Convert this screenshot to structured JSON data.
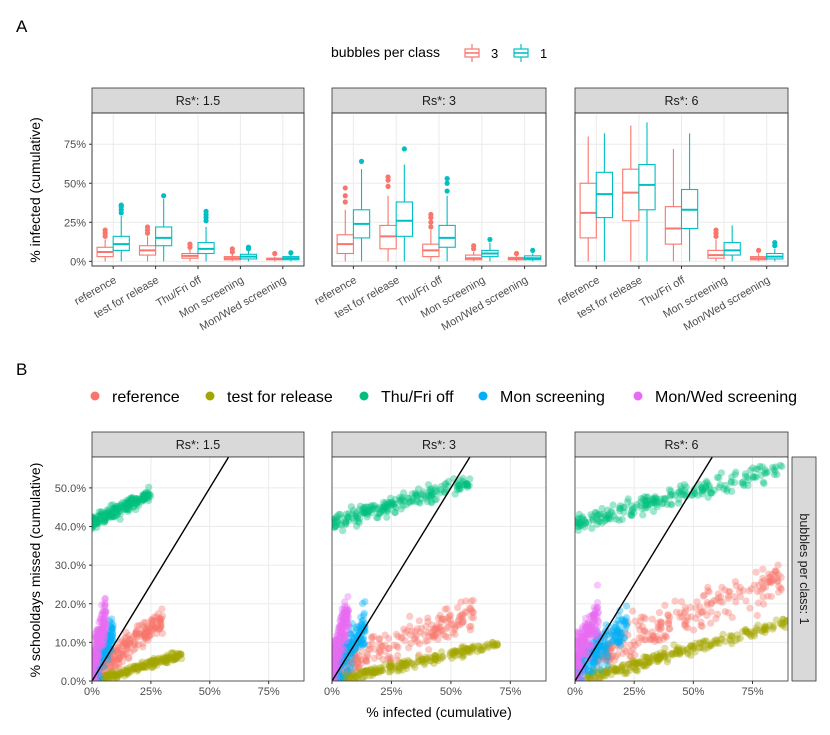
{
  "figure": {
    "panel_a_label": "A",
    "panel_b_label": "B"
  },
  "colors": {
    "bubbles3": "#F8766D",
    "bubbles1": "#00BFC4",
    "reference": "#F8766D",
    "test for release": "#A3A500",
    "Thu/Fri off": "#00BF7D",
    "Mon screening": "#00B0F6",
    "Mon/Wed screening": "#E76BF3"
  },
  "chart_data": [
    {
      "type": "boxplot",
      "id": "A",
      "ylabel": "% infected (cumulative)",
      "ylim": [
        -0.03,
        0.95
      ],
      "y_ticks": [
        0,
        0.25,
        0.5,
        0.75
      ],
      "y_tick_labels": [
        "0%",
        "25%",
        "50%",
        "75%"
      ],
      "categories": [
        "reference",
        "test for release",
        "Thu/Fri off",
        "Mon screening",
        "Mon/Wed screening"
      ],
      "legend": {
        "title": "bubbles per class",
        "entries": [
          {
            "label": "3",
            "color": "#F8766D"
          },
          {
            "label": "1",
            "color": "#00BFC4"
          }
        ]
      },
      "panels": [
        {
          "strip": "Rs*: 1.5",
          "series": [
            {
              "name": "3",
              "boxes": [
                {
                  "q1": 0.03,
                  "median": 0.06,
                  "q3": 0.09,
                  "lo": 0.0,
                  "hi": 0.14,
                  "out": [
                    0.16,
                    0.18,
                    0.2
                  ]
                },
                {
                  "q1": 0.04,
                  "median": 0.07,
                  "q3": 0.1,
                  "lo": 0.0,
                  "hi": 0.16,
                  "out": [
                    0.18,
                    0.2,
                    0.22
                  ]
                },
                {
                  "q1": 0.02,
                  "median": 0.035,
                  "q3": 0.05,
                  "lo": 0.0,
                  "hi": 0.08,
                  "out": [
                    0.09,
                    0.11
                  ]
                },
                {
                  "q1": 0.01,
                  "median": 0.02,
                  "q3": 0.03,
                  "lo": 0.0,
                  "hi": 0.05,
                  "out": [
                    0.06,
                    0.08
                  ]
                },
                {
                  "q1": 0.01,
                  "median": 0.015,
                  "q3": 0.02,
                  "lo": 0.0,
                  "hi": 0.03,
                  "out": [
                    0.05
                  ]
                }
              ]
            },
            {
              "name": "1",
              "boxes": [
                {
                  "q1": 0.07,
                  "median": 0.11,
                  "q3": 0.16,
                  "lo": 0.0,
                  "hi": 0.29,
                  "out": [
                    0.31,
                    0.33,
                    0.35,
                    0.36
                  ]
                },
                {
                  "q1": 0.1,
                  "median": 0.15,
                  "q3": 0.22,
                  "lo": 0.0,
                  "hi": 0.4,
                  "out": [
                    0.42
                  ]
                },
                {
                  "q1": 0.05,
                  "median": 0.08,
                  "q3": 0.12,
                  "lo": 0.0,
                  "hi": 0.22,
                  "out": [
                    0.26,
                    0.28,
                    0.3,
                    0.32
                  ]
                },
                {
                  "q1": 0.015,
                  "median": 0.03,
                  "q3": 0.045,
                  "lo": 0.0,
                  "hi": 0.07,
                  "out": [
                    0.08,
                    0.09
                  ]
                },
                {
                  "q1": 0.01,
                  "median": 0.02,
                  "q3": 0.03,
                  "lo": 0.0,
                  "hi": 0.045,
                  "out": [
                    0.055
                  ]
                }
              ]
            }
          ]
        },
        {
          "strip": "Rs*: 3",
          "series": [
            {
              "name": "3",
              "boxes": [
                {
                  "q1": 0.05,
                  "median": 0.11,
                  "q3": 0.17,
                  "lo": 0.0,
                  "hi": 0.33,
                  "out": [
                    0.38,
                    0.42,
                    0.47
                  ]
                },
                {
                  "q1": 0.08,
                  "median": 0.16,
                  "q3": 0.23,
                  "lo": 0.0,
                  "hi": 0.42,
                  "out": [
                    0.48,
                    0.52,
                    0.54
                  ]
                },
                {
                  "q1": 0.03,
                  "median": 0.07,
                  "q3": 0.11,
                  "lo": 0.0,
                  "hi": 0.2,
                  "out": [
                    0.22,
                    0.25,
                    0.28,
                    0.3
                  ]
                },
                {
                  "q1": 0.01,
                  "median": 0.02,
                  "q3": 0.04,
                  "lo": 0.0,
                  "hi": 0.06,
                  "out": [
                    0.08,
                    0.1
                  ]
                },
                {
                  "q1": 0.01,
                  "median": 0.015,
                  "q3": 0.025,
                  "lo": 0.0,
                  "hi": 0.04,
                  "out": [
                    0.05
                  ]
                }
              ]
            },
            {
              "name": "1",
              "boxes": [
                {
                  "q1": 0.15,
                  "median": 0.24,
                  "q3": 0.33,
                  "lo": 0.0,
                  "hi": 0.59,
                  "out": [
                    0.64
                  ]
                },
                {
                  "q1": 0.16,
                  "median": 0.26,
                  "q3": 0.38,
                  "lo": 0.0,
                  "hi": 0.62,
                  "out": [
                    0.72
                  ]
                },
                {
                  "q1": 0.09,
                  "median": 0.15,
                  "q3": 0.23,
                  "lo": 0.0,
                  "hi": 0.42,
                  "out": [
                    0.45,
                    0.5,
                    0.53
                  ]
                },
                {
                  "q1": 0.03,
                  "median": 0.05,
                  "q3": 0.07,
                  "lo": 0.0,
                  "hi": 0.12,
                  "out": [
                    0.14
                  ]
                },
                {
                  "q1": 0.01,
                  "median": 0.02,
                  "q3": 0.035,
                  "lo": 0.0,
                  "hi": 0.05,
                  "out": [
                    0.07
                  ]
                }
              ]
            }
          ]
        },
        {
          "strip": "Rs*: 6",
          "series": [
            {
              "name": "3",
              "boxes": [
                {
                  "q1": 0.15,
                  "median": 0.31,
                  "q3": 0.5,
                  "lo": 0.0,
                  "hi": 0.8,
                  "out": []
                },
                {
                  "q1": 0.26,
                  "median": 0.44,
                  "q3": 0.59,
                  "lo": 0.0,
                  "hi": 0.87,
                  "out": []
                },
                {
                  "q1": 0.11,
                  "median": 0.21,
                  "q3": 0.35,
                  "lo": 0.0,
                  "hi": 0.72,
                  "out": []
                },
                {
                  "q1": 0.02,
                  "median": 0.04,
                  "q3": 0.07,
                  "lo": 0.0,
                  "hi": 0.14,
                  "out": [
                    0.16,
                    0.18,
                    0.2
                  ]
                },
                {
                  "q1": 0.01,
                  "median": 0.02,
                  "q3": 0.03,
                  "lo": 0.0,
                  "hi": 0.05,
                  "out": [
                    0.07
                  ]
                }
              ]
            },
            {
              "name": "1",
              "boxes": [
                {
                  "q1": 0.28,
                  "median": 0.43,
                  "q3": 0.57,
                  "lo": 0.0,
                  "hi": 0.82,
                  "out": []
                },
                {
                  "q1": 0.33,
                  "median": 0.49,
                  "q3": 0.62,
                  "lo": 0.0,
                  "hi": 0.89,
                  "out": []
                },
                {
                  "q1": 0.21,
                  "median": 0.33,
                  "q3": 0.46,
                  "lo": 0.0,
                  "hi": 0.82,
                  "out": []
                },
                {
                  "q1": 0.04,
                  "median": 0.07,
                  "q3": 0.12,
                  "lo": 0.0,
                  "hi": 0.23,
                  "out": []
                },
                {
                  "q1": 0.015,
                  "median": 0.03,
                  "q3": 0.05,
                  "lo": 0.0,
                  "hi": 0.08,
                  "out": [
                    0.1,
                    0.12
                  ]
                }
              ]
            }
          ]
        }
      ]
    },
    {
      "type": "scatter",
      "id": "B",
      "xlabel": "% infected (cumulative)",
      "ylabel": "% schooldays missed (cumulative)",
      "xlim": [
        0,
        0.9
      ],
      "ylim": [
        0,
        0.58
      ],
      "x_ticks": [
        0,
        0.25,
        0.5,
        0.75
      ],
      "x_tick_labels": [
        "0%",
        "25%",
        "50%",
        "75%"
      ],
      "y_ticks": [
        0,
        0.1,
        0.2,
        0.3,
        0.4,
        0.5
      ],
      "y_tick_labels": [
        "0.0%",
        "10.0%",
        "20.0%",
        "30.0%",
        "40.0%",
        "50.0%"
      ],
      "row_strip": "bubbles per class: 1",
      "reference_line": {
        "slope": 1,
        "intercept": 0
      },
      "legend": {
        "entries": [
          "reference",
          "test for release",
          "Thu/Fri off",
          "Mon screening",
          "Mon/Wed screening"
        ],
        "position": "top"
      },
      "panels": [
        {
          "strip": "Rs*: 1.5",
          "clusters": [
            {
              "name": "Thu/Fri off",
              "n": 200,
              "x": [
                0.0,
                0.25
              ],
              "y0": 0.41,
              "slope": 0.3,
              "noise": 0.015
            },
            {
              "name": "reference",
              "n": 200,
              "x": [
                0.03,
                0.3
              ],
              "y0": 0.02,
              "slope": 0.45,
              "noise": 0.03
            },
            {
              "name": "test for release",
              "n": 200,
              "x": [
                0.03,
                0.38
              ],
              "y0": 0.0,
              "slope": 0.18,
              "noise": 0.008
            },
            {
              "name": "Mon screening",
              "n": 180,
              "x": [
                0.0,
                0.09
              ],
              "y0": 0.01,
              "slope": 1.4,
              "noise": 0.04
            },
            {
              "name": "Mon/Wed screening",
              "n": 180,
              "x": [
                0.0,
                0.06
              ],
              "y0": 0.04,
              "slope": 2.2,
              "noise": 0.05
            }
          ]
        },
        {
          "strip": "Rs*: 3",
          "clusters": [
            {
              "name": "Thu/Fri off",
              "n": 200,
              "x": [
                0.0,
                0.58
              ],
              "y0": 0.41,
              "slope": 0.18,
              "noise": 0.018
            },
            {
              "name": "reference",
              "n": 220,
              "x": [
                0.02,
                0.6
              ],
              "y0": 0.03,
              "slope": 0.25,
              "noise": 0.04
            },
            {
              "name": "test for release",
              "n": 220,
              "x": [
                0.02,
                0.7
              ],
              "y0": 0.0,
              "slope": 0.14,
              "noise": 0.01
            },
            {
              "name": "Mon screening",
              "n": 180,
              "x": [
                0.0,
                0.14
              ],
              "y0": 0.01,
              "slope": 1.0,
              "noise": 0.04
            },
            {
              "name": "Mon/Wed screening",
              "n": 180,
              "x": [
                0.0,
                0.07
              ],
              "y0": 0.04,
              "slope": 2.0,
              "noise": 0.05
            }
          ]
        },
        {
          "strip": "Rs*: 6",
          "clusters": [
            {
              "name": "Thu/Fri off",
              "n": 220,
              "x": [
                0.0,
                0.88
              ],
              "y0": 0.41,
              "slope": 0.16,
              "noise": 0.02
            },
            {
              "name": "reference",
              "n": 240,
              "x": [
                0.08,
                0.88
              ],
              "y0": 0.04,
              "slope": 0.27,
              "noise": 0.045
            },
            {
              "name": "test for release",
              "n": 240,
              "x": [
                0.05,
                0.9
              ],
              "y0": 0.0,
              "slope": 0.17,
              "noise": 0.012
            },
            {
              "name": "Mon screening",
              "n": 200,
              "x": [
                0.0,
                0.22
              ],
              "y0": 0.02,
              "slope": 0.6,
              "noise": 0.04
            },
            {
              "name": "Mon/Wed screening",
              "n": 180,
              "x": [
                0.0,
                0.1
              ],
              "y0": 0.05,
              "slope": 1.3,
              "noise": 0.05
            }
          ]
        }
      ]
    }
  ]
}
